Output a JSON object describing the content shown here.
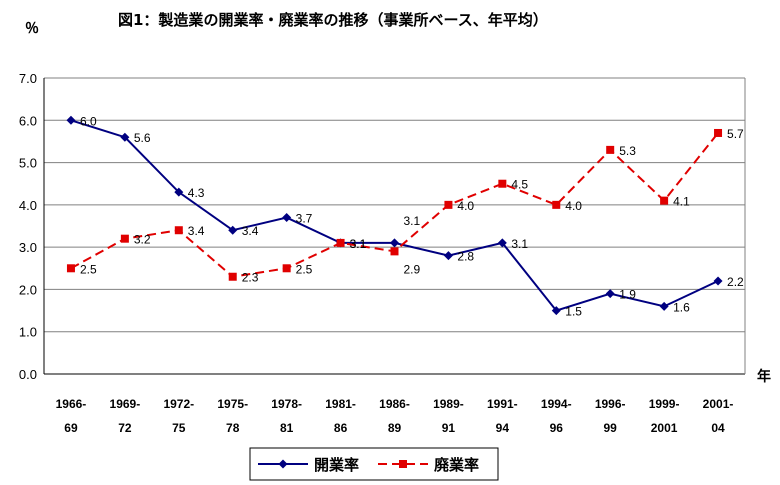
{
  "chart_data": {
    "type": "line",
    "title": "図1：製造業の開業率・廃業率の推移（事業所ベース、年平均）",
    "ylabel": "％",
    "xlabel": "年",
    "ylim": [
      0,
      7
    ],
    "yticks": [
      "0.0",
      "1.0",
      "2.0",
      "3.0",
      "4.0",
      "5.0",
      "6.0",
      "7.0"
    ],
    "grid": true,
    "legend": "bottom",
    "categories": [
      [
        "1966-",
        "69"
      ],
      [
        "1969-",
        "72"
      ],
      [
        "1972-",
        "75"
      ],
      [
        "1975-",
        "78"
      ],
      [
        "1978-",
        "81"
      ],
      [
        "1981-",
        "86"
      ],
      [
        "1986-",
        "89"
      ],
      [
        "1989-",
        "91"
      ],
      [
        "1991-",
        "94"
      ],
      [
        "1994-",
        "96"
      ],
      [
        "1996-",
        "99"
      ],
      [
        "1999-",
        "2001"
      ],
      [
        "2001-",
        "04"
      ]
    ],
    "series": [
      {
        "name": "開業率",
        "color": "#000080",
        "marker": "diamond",
        "line": "solid",
        "values": [
          6.0,
          5.6,
          4.3,
          3.4,
          3.7,
          3.1,
          3.1,
          2.8,
          3.1,
          1.5,
          1.9,
          1.6,
          2.2
        ],
        "labels": [
          "6.0",
          "5.6",
          "4.3",
          "3.4",
          "3.7",
          "3.1",
          "3.1",
          "2.8",
          "3.1",
          "1.5",
          "1.9",
          "1.6",
          "2.2"
        ]
      },
      {
        "name": "廃業率",
        "color": "#e00000",
        "marker": "square",
        "line": "dashed",
        "values": [
          2.5,
          3.2,
          3.4,
          2.3,
          2.5,
          3.1,
          2.9,
          4.0,
          4.5,
          4.0,
          5.3,
          4.1,
          5.7
        ],
        "labels": [
          "2.5",
          "3.2",
          "3.4",
          "2.3",
          "2.5",
          "3.1",
          "2.9",
          "4.0",
          "4.5",
          "4.0",
          "5.3",
          "4.1",
          "5.7"
        ]
      }
    ]
  }
}
